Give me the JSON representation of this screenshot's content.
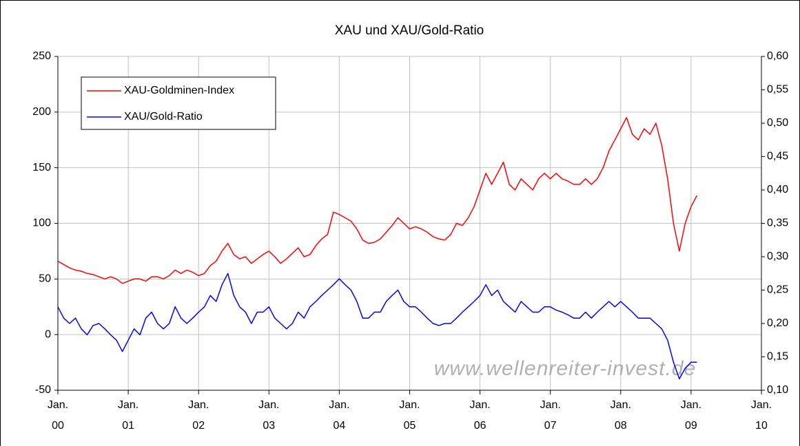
{
  "chart_data": {
    "type": "line",
    "title": "XAU und XAU/Gold-Ratio",
    "watermark": "www.wellenreiter-invest.de",
    "x": [
      "2000-01",
      "2000-02",
      "2000-03",
      "2000-04",
      "2000-05",
      "2000-06",
      "2000-07",
      "2000-08",
      "2000-09",
      "2000-10",
      "2000-11",
      "2000-12",
      "2001-01",
      "2001-02",
      "2001-03",
      "2001-04",
      "2001-05",
      "2001-06",
      "2001-07",
      "2001-08",
      "2001-09",
      "2001-10",
      "2001-11",
      "2001-12",
      "2002-01",
      "2002-02",
      "2002-03",
      "2002-04",
      "2002-05",
      "2002-06",
      "2002-07",
      "2002-08",
      "2002-09",
      "2002-10",
      "2002-11",
      "2002-12",
      "2003-01",
      "2003-02",
      "2003-03",
      "2003-04",
      "2003-05",
      "2003-06",
      "2003-07",
      "2003-08",
      "2003-09",
      "2003-10",
      "2003-11",
      "2003-12",
      "2004-01",
      "2004-02",
      "2004-03",
      "2004-04",
      "2004-05",
      "2004-06",
      "2004-07",
      "2004-08",
      "2004-09",
      "2004-10",
      "2004-11",
      "2004-12",
      "2005-01",
      "2005-02",
      "2005-03",
      "2005-04",
      "2005-05",
      "2005-06",
      "2005-07",
      "2005-08",
      "2005-09",
      "2005-10",
      "2005-11",
      "2005-12",
      "2006-01",
      "2006-02",
      "2006-03",
      "2006-04",
      "2006-05",
      "2006-06",
      "2006-07",
      "2006-08",
      "2006-09",
      "2006-10",
      "2006-11",
      "2006-12",
      "2007-01",
      "2007-02",
      "2007-03",
      "2007-04",
      "2007-05",
      "2007-06",
      "2007-07",
      "2007-08",
      "2007-09",
      "2007-10",
      "2007-11",
      "2007-12",
      "2008-01",
      "2008-02",
      "2008-03",
      "2008-04",
      "2008-05",
      "2008-06",
      "2008-07",
      "2008-08",
      "2008-09",
      "2008-10",
      "2008-11",
      "2008-12",
      "2009-01",
      "2009-02"
    ],
    "series": [
      {
        "name": "XAU-Goldminen-Index",
        "color": "#ff0000",
        "axis": "y",
        "values": [
          66,
          63,
          60,
          58,
          57,
          55,
          54,
          52,
          50,
          52,
          50,
          46,
          48,
          50,
          50,
          48,
          52,
          52,
          50,
          53,
          58,
          55,
          58,
          56,
          53,
          55,
          62,
          66,
          75,
          82,
          72,
          68,
          70,
          64,
          68,
          72,
          75,
          70,
          64,
          68,
          73,
          78,
          70,
          72,
          80,
          86,
          90,
          110,
          108,
          105,
          102,
          95,
          85,
          82,
          83,
          86,
          92,
          98,
          105,
          100,
          95,
          97,
          95,
          92,
          88,
          86,
          85,
          90,
          100,
          98,
          105,
          115,
          130,
          145,
          135,
          145,
          155,
          135,
          130,
          140,
          135,
          130,
          140,
          145,
          140,
          145,
          140,
          138,
          135,
          135,
          140,
          135,
          140,
          150,
          165,
          175,
          185,
          195,
          180,
          175,
          185,
          180,
          190,
          170,
          140,
          100,
          75,
          100,
          115,
          125
        ]
      },
      {
        "name": "XAU/Gold-Ratio",
        "color": "#0000ff",
        "axis": "y2",
        "values": [
          0.225,
          0.208,
          0.2,
          0.208,
          0.192,
          0.183,
          0.197,
          0.2,
          0.192,
          0.183,
          0.175,
          0.158,
          0.175,
          0.192,
          0.183,
          0.208,
          0.217,
          0.2,
          0.192,
          0.2,
          0.225,
          0.208,
          0.2,
          0.208,
          0.217,
          0.225,
          0.242,
          0.233,
          0.258,
          0.275,
          0.242,
          0.225,
          0.217,
          0.2,
          0.217,
          0.217,
          0.225,
          0.208,
          0.2,
          0.192,
          0.2,
          0.217,
          0.208,
          0.225,
          0.233,
          0.242,
          0.25,
          0.258,
          0.267,
          0.258,
          0.25,
          0.233,
          0.208,
          0.208,
          0.217,
          0.217,
          0.233,
          0.242,
          0.25,
          0.233,
          0.225,
          0.225,
          0.217,
          0.208,
          0.2,
          0.197,
          0.2,
          0.2,
          0.208,
          0.217,
          0.225,
          0.233,
          0.242,
          0.258,
          0.242,
          0.25,
          0.233,
          0.225,
          0.217,
          0.233,
          0.225,
          0.217,
          0.217,
          0.225,
          0.225,
          0.22,
          0.217,
          0.213,
          0.208,
          0.208,
          0.217,
          0.208,
          0.217,
          0.225,
          0.233,
          0.225,
          0.233,
          0.225,
          0.217,
          0.208,
          0.208,
          0.208,
          0.2,
          0.192,
          0.175,
          0.142,
          0.117,
          0.133,
          0.142,
          0.142
        ]
      }
    ],
    "xlim": [
      "2000-01",
      "2010-01"
    ],
    "xticks": [
      {
        "value": "2000-01",
        "label": "Jan. 00"
      },
      {
        "value": "2001-01",
        "label": "Jan. 01"
      },
      {
        "value": "2002-01",
        "label": "Jan. 02"
      },
      {
        "value": "2003-01",
        "label": "Jan. 03"
      },
      {
        "value": "2004-01",
        "label": "Jan. 04"
      },
      {
        "value": "2005-01",
        "label": "Jan. 05"
      },
      {
        "value": "2006-01",
        "label": "Jan. 06"
      },
      {
        "value": "2007-01",
        "label": "Jan. 07"
      },
      {
        "value": "2008-01",
        "label": "Jan. 08"
      },
      {
        "value": "2009-01",
        "label": "Jan. 09"
      },
      {
        "value": "2010-01",
        "label": "Jan. 10"
      }
    ],
    "ylim": [
      -50,
      250
    ],
    "yticks": [
      -50,
      0,
      50,
      100,
      150,
      200,
      250
    ],
    "y2lim": [
      0.1,
      0.6
    ],
    "y2ticks": [
      {
        "value": 0.1,
        "label": "0,10"
      },
      {
        "value": 0.15,
        "label": "0,15"
      },
      {
        "value": 0.2,
        "label": "0,20"
      },
      {
        "value": 0.25,
        "label": "0,25"
      },
      {
        "value": 0.3,
        "label": "0,30"
      },
      {
        "value": 0.35,
        "label": "0,35"
      },
      {
        "value": 0.4,
        "label": "0,40"
      },
      {
        "value": 0.45,
        "label": "0,45"
      },
      {
        "value": 0.5,
        "label": "0,50"
      },
      {
        "value": 0.55,
        "label": "0,55"
      },
      {
        "value": 0.6,
        "label": "0,60"
      }
    ],
    "grid": true,
    "legend": "upper left"
  }
}
